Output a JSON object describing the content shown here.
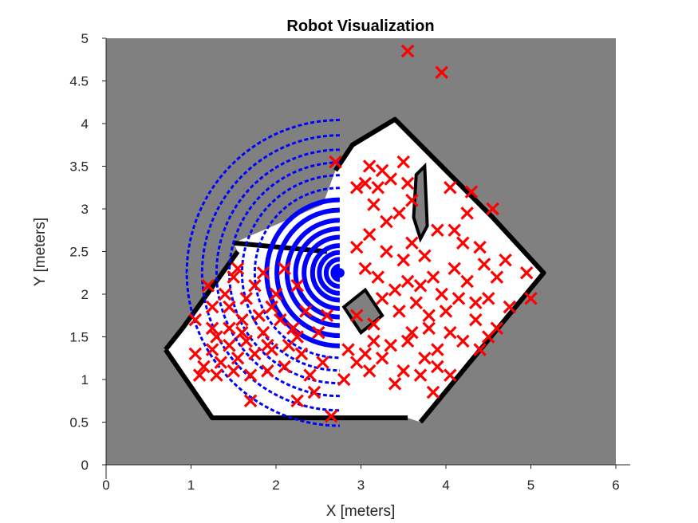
{
  "chart_data": {
    "type": "scatter",
    "title": "Robot Visualization",
    "xlabel": "X [meters]",
    "ylabel": "Y [meters]",
    "xlim": [
      0,
      6.0
    ],
    "ylim": [
      0,
      5.0
    ],
    "xticks": [
      "0",
      "1",
      "2",
      "3",
      "4",
      "5",
      "6"
    ],
    "yticks": [
      "0",
      "0.5",
      "1",
      "1.5",
      "2",
      "2.5",
      "3",
      "3.5",
      "4",
      "4.5",
      "5"
    ],
    "grid": false,
    "legend": "none",
    "colors": {
      "unknown": "#808080",
      "free": "#ffffff",
      "occupied": "#000000",
      "particles": "#ff0000",
      "scan": "#0000ff"
    },
    "occupancy_map": {
      "free_region": [
        [
          0.7,
          1.35
        ],
        [
          1.25,
          0.55
        ],
        [
          3.55,
          0.55
        ],
        [
          3.7,
          0.5
        ],
        [
          5.15,
          2.25
        ],
        [
          4.55,
          2.9
        ],
        [
          3.4,
          4.05
        ],
        [
          2.9,
          3.75
        ],
        [
          2.7,
          3.45
        ],
        [
          2.55,
          3.05
        ],
        [
          1.5,
          2.6
        ],
        [
          1.55,
          2.5
        ],
        [
          0.9,
          1.6
        ]
      ],
      "walls": [
        [
          [
            0.7,
            1.35
          ],
          [
            1.25,
            0.55
          ],
          [
            3.55,
            0.55
          ]
        ],
        [
          [
            3.7,
            0.5
          ],
          [
            5.15,
            2.25
          ],
          [
            4.55,
            2.9
          ],
          [
            3.4,
            4.05
          ],
          [
            2.9,
            3.75
          ],
          [
            2.7,
            3.45
          ]
        ],
        [
          [
            1.5,
            2.6
          ],
          [
            2.6,
            2.5
          ]
        ],
        [
          [
            1.55,
            2.5
          ],
          [
            0.9,
            1.6
          ]
        ],
        [
          [
            0.9,
            1.6
          ],
          [
            0.7,
            1.35
          ]
        ]
      ],
      "obstacles": [
        [
          [
            2.8,
            1.85
          ],
          [
            3.0,
            1.55
          ],
          [
            3.25,
            1.75
          ],
          [
            3.05,
            2.05
          ]
        ],
        [
          [
            3.65,
            3.4
          ],
          [
            3.75,
            3.5
          ],
          [
            3.78,
            2.8
          ],
          [
            3.7,
            2.65
          ],
          [
            3.62,
            2.9
          ]
        ]
      ]
    },
    "robot_pose": {
      "x": 2.75,
      "y": 2.25
    },
    "scan_rings": [
      0.08,
      0.16,
      0.24,
      0.32,
      0.42,
      0.52,
      0.62,
      0.74,
      0.86,
      1.0,
      1.15,
      1.3,
      1.45,
      1.62,
      1.8
    ],
    "particles": [
      {
        "x": 3.55,
        "y": 4.85
      },
      {
        "x": 3.95,
        "y": 4.6
      },
      {
        "x": 2.7,
        "y": 3.55
      },
      {
        "x": 3.5,
        "y": 3.55
      },
      {
        "x": 3.1,
        "y": 3.5
      },
      {
        "x": 3.25,
        "y": 3.45
      },
      {
        "x": 3.05,
        "y": 3.3
      },
      {
        "x": 2.95,
        "y": 3.25
      },
      {
        "x": 3.2,
        "y": 3.25
      },
      {
        "x": 3.35,
        "y": 3.35
      },
      {
        "x": 3.15,
        "y": 3.05
      },
      {
        "x": 3.55,
        "y": 3.3
      },
      {
        "x": 3.6,
        "y": 3.1
      },
      {
        "x": 4.05,
        "y": 3.25
      },
      {
        "x": 4.3,
        "y": 3.2
      },
      {
        "x": 4.55,
        "y": 3.0
      },
      {
        "x": 4.25,
        "y": 2.95
      },
      {
        "x": 3.9,
        "y": 2.75
      },
      {
        "x": 4.1,
        "y": 2.75
      },
      {
        "x": 4.2,
        "y": 2.6
      },
      {
        "x": 4.4,
        "y": 2.55
      },
      {
        "x": 4.7,
        "y": 2.4
      },
      {
        "x": 4.95,
        "y": 2.25
      },
      {
        "x": 5.0,
        "y": 1.95
      },
      {
        "x": 4.75,
        "y": 1.85
      },
      {
        "x": 4.5,
        "y": 1.95
      },
      {
        "x": 4.6,
        "y": 1.6
      },
      {
        "x": 4.35,
        "y": 1.7
      },
      {
        "x": 4.2,
        "y": 1.45
      },
      {
        "x": 4.4,
        "y": 1.35
      },
      {
        "x": 4.05,
        "y": 1.55
      },
      {
        "x": 3.9,
        "y": 1.35
      },
      {
        "x": 3.75,
        "y": 1.25
      },
      {
        "x": 3.8,
        "y": 1.6
      },
      {
        "x": 3.55,
        "y": 1.45
      },
      {
        "x": 3.35,
        "y": 1.4
      },
      {
        "x": 3.15,
        "y": 1.45
      },
      {
        "x": 3.05,
        "y": 1.3
      },
      {
        "x": 3.25,
        "y": 1.25
      },
      {
        "x": 2.85,
        "y": 1.35
      },
      {
        "x": 2.95,
        "y": 1.2
      },
      {
        "x": 2.8,
        "y": 1.0
      },
      {
        "x": 3.4,
        "y": 0.95
      },
      {
        "x": 3.7,
        "y": 1.05
      },
      {
        "x": 3.85,
        "y": 0.85
      },
      {
        "x": 4.05,
        "y": 1.05
      },
      {
        "x": 2.65,
        "y": 0.57
      },
      {
        "x": 3.25,
        "y": 1.95
      },
      {
        "x": 3.4,
        "y": 2.05
      },
      {
        "x": 3.55,
        "y": 2.15
      },
      {
        "x": 3.7,
        "y": 2.1
      },
      {
        "x": 3.85,
        "y": 2.2
      },
      {
        "x": 3.95,
        "y": 2.0
      },
      {
        "x": 4.1,
        "y": 2.3
      },
      {
        "x": 4.25,
        "y": 2.15
      },
      {
        "x": 3.5,
        "y": 2.4
      },
      {
        "x": 3.6,
        "y": 2.6
      },
      {
        "x": 3.3,
        "y": 2.5
      },
      {
        "x": 3.1,
        "y": 2.7
      },
      {
        "x": 2.95,
        "y": 2.55
      },
      {
        "x": 3.05,
        "y": 2.3
      },
      {
        "x": 3.2,
        "y": 2.2
      },
      {
        "x": 3.45,
        "y": 1.8
      },
      {
        "x": 3.65,
        "y": 1.9
      },
      {
        "x": 3.8,
        "y": 1.75
      },
      {
        "x": 4.0,
        "y": 1.8
      },
      {
        "x": 4.15,
        "y": 1.95
      },
      {
        "x": 3.3,
        "y": 2.85
      },
      {
        "x": 3.45,
        "y": 2.95
      },
      {
        "x": 3.75,
        "y": 2.45
      },
      {
        "x": 4.45,
        "y": 2.35
      },
      {
        "x": 4.6,
        "y": 2.2
      },
      {
        "x": 4.35,
        "y": 1.9
      },
      {
        "x": 4.5,
        "y": 1.5
      },
      {
        "x": 3.9,
        "y": 1.15
      },
      {
        "x": 3.6,
        "y": 1.55
      },
      {
        "x": 3.15,
        "y": 1.65
      },
      {
        "x": 2.95,
        "y": 1.75
      },
      {
        "x": 3.1,
        "y": 1.1
      },
      {
        "x": 3.5,
        "y": 1.1
      },
      {
        "x": 1.2,
        "y": 2.1
      },
      {
        "x": 1.5,
        "y": 2.2
      },
      {
        "x": 1.75,
        "y": 2.1
      },
      {
        "x": 1.65,
        "y": 1.95
      },
      {
        "x": 1.45,
        "y": 1.85
      },
      {
        "x": 1.25,
        "y": 1.85
      },
      {
        "x": 1.05,
        "y": 1.7
      },
      {
        "x": 1.25,
        "y": 1.6
      },
      {
        "x": 1.45,
        "y": 1.6
      },
      {
        "x": 1.6,
        "y": 1.7
      },
      {
        "x": 1.8,
        "y": 1.75
      },
      {
        "x": 1.95,
        "y": 1.85
      },
      {
        "x": 2.05,
        "y": 1.7
      },
      {
        "x": 1.85,
        "y": 1.55
      },
      {
        "x": 1.65,
        "y": 1.45
      },
      {
        "x": 1.45,
        "y": 1.4
      },
      {
        "x": 1.25,
        "y": 1.35
      },
      {
        "x": 1.05,
        "y": 1.3
      },
      {
        "x": 1.15,
        "y": 1.15
      },
      {
        "x": 1.35,
        "y": 1.2
      },
      {
        "x": 1.55,
        "y": 1.25
      },
      {
        "x": 1.75,
        "y": 1.3
      },
      {
        "x": 1.95,
        "y": 1.35
      },
      {
        "x": 2.15,
        "y": 1.4
      },
      {
        "x": 2.2,
        "y": 1.6
      },
      {
        "x": 2.35,
        "y": 1.8
      },
      {
        "x": 2.5,
        "y": 1.55
      },
      {
        "x": 2.3,
        "y": 1.3
      },
      {
        "x": 2.1,
        "y": 1.15
      },
      {
        "x": 1.9,
        "y": 1.1
      },
      {
        "x": 1.7,
        "y": 1.05
      },
      {
        "x": 1.5,
        "y": 1.1
      },
      {
        "x": 1.3,
        "y": 1.05
      },
      {
        "x": 1.1,
        "y": 1.05
      },
      {
        "x": 2.4,
        "y": 1.05
      },
      {
        "x": 2.55,
        "y": 1.2
      },
      {
        "x": 2.6,
        "y": 1.75
      },
      {
        "x": 2.0,
        "y": 2.0
      },
      {
        "x": 2.25,
        "y": 2.1
      },
      {
        "x": 1.4,
        "y": 2.0
      },
      {
        "x": 1.7,
        "y": 0.75
      },
      {
        "x": 2.25,
        "y": 0.75
      },
      {
        "x": 2.45,
        "y": 0.85
      },
      {
        "x": 1.55,
        "y": 2.3
      },
      {
        "x": 1.85,
        "y": 2.25
      },
      {
        "x": 2.1,
        "y": 2.3
      },
      {
        "x": 1.3,
        "y": 1.5
      },
      {
        "x": 1.6,
        "y": 1.55
      },
      {
        "x": 2.25,
        "y": 1.5
      },
      {
        "x": 1.9,
        "y": 1.4
      }
    ]
  }
}
